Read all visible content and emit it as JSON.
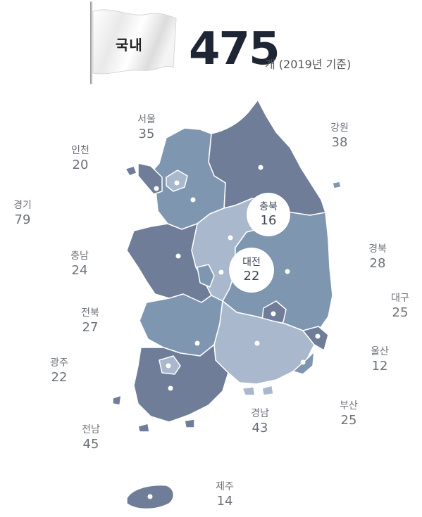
{
  "flag": {
    "label": "국내"
  },
  "total": {
    "value": "475",
    "note": "개 (2019년 기준)"
  },
  "regions": {
    "seoul": {
      "name": "서울",
      "count": "35"
    },
    "incheon": {
      "name": "인천",
      "count": "20"
    },
    "gyeonggi": {
      "name": "경기",
      "count": "79"
    },
    "gangwon": {
      "name": "강원",
      "count": "38"
    },
    "chungbuk": {
      "name": "충북",
      "count": "16"
    },
    "chungnam": {
      "name": "충남",
      "count": "24"
    },
    "daejeon": {
      "name": "대전",
      "count": "22"
    },
    "gyeongbuk": {
      "name": "경북",
      "count": "28"
    },
    "daegu": {
      "name": "대구",
      "count": "25"
    },
    "jeonbuk": {
      "name": "전북",
      "count": "27"
    },
    "ulsan": {
      "name": "울산",
      "count": "12"
    },
    "gwangju": {
      "name": "광주",
      "count": "22"
    },
    "jeonnam": {
      "name": "전남",
      "count": "45"
    },
    "gyeongnam": {
      "name": "경남",
      "count": "43"
    },
    "busan": {
      "name": "부산",
      "count": "25"
    },
    "jeju": {
      "name": "제주",
      "count": "14"
    }
  },
  "colors": {
    "dark": "#6f7d99",
    "mid": "#7f96b1",
    "light": "#a9b8cc",
    "label": "#6c717a"
  }
}
